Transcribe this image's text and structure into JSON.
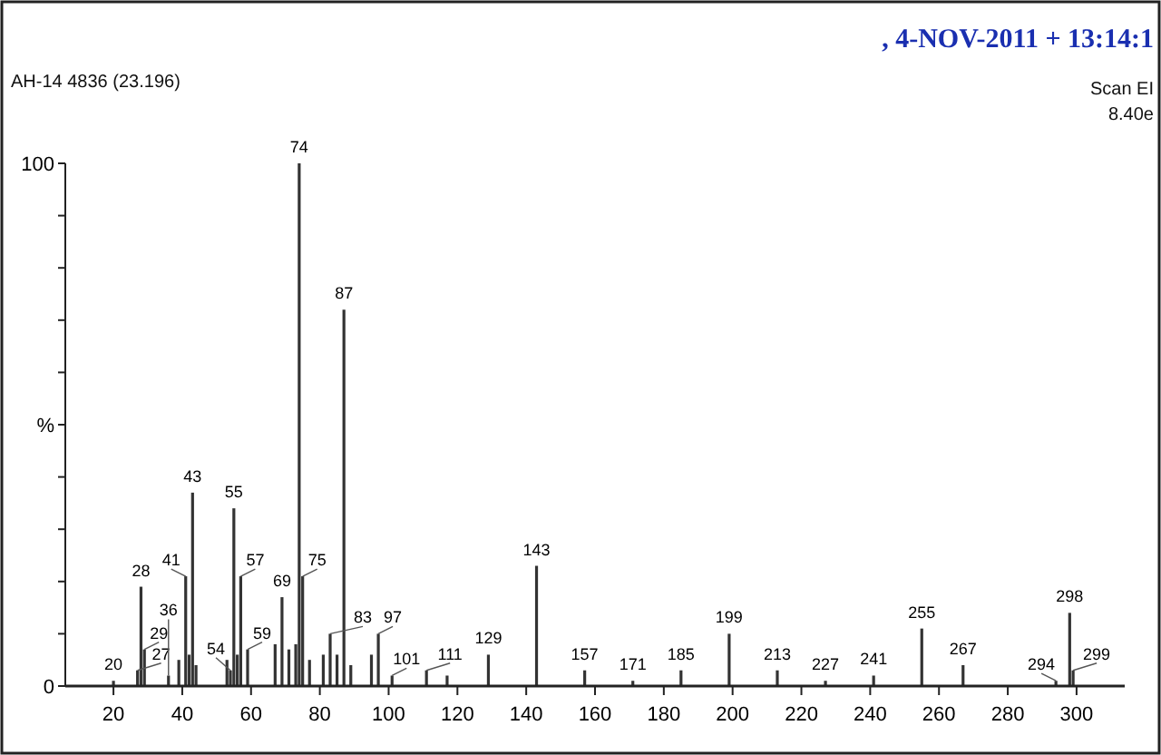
{
  "chart_data": {
    "type": "bar",
    "title": ", 4-NOV-2011 + 13:14:1",
    "subtitle": "AH-14 4836 (23.196)",
    "ylabel": "%",
    "color": "#333333",
    "x": [
      20,
      27,
      28,
      29,
      36,
      39,
      41,
      42,
      43,
      44,
      53,
      54,
      55,
      56,
      57,
      59,
      67,
      69,
      71,
      73,
      74,
      75,
      77,
      81,
      83,
      85,
      87,
      89,
      95,
      97,
      101,
      111,
      117,
      129,
      143,
      157,
      171,
      185,
      199,
      213,
      227,
      241,
      255,
      267,
      294,
      298,
      299
    ],
    "values": [
      1,
      3,
      19,
      7,
      2,
      5,
      21,
      6,
      37,
      4,
      5,
      3,
      34,
      6,
      21,
      7,
      8,
      17,
      7,
      8,
      100,
      21,
      5,
      6,
      10,
      6,
      72,
      4,
      6,
      10,
      2,
      3,
      2,
      6,
      23,
      3,
      1,
      3,
      10,
      3,
      1,
      2,
      11,
      4,
      1,
      14,
      3
    ],
    "xlim": [
      6,
      314
    ],
    "xticks": [
      20,
      40,
      60,
      80,
      100,
      120,
      140,
      160,
      180,
      200,
      220,
      240,
      260,
      280,
      300
    ],
    "ylim": [
      0,
      100
    ],
    "yticks": [
      0,
      {
        "value": 10,
        "label": null
      },
      {
        "value": 20,
        "label": null
      },
      {
        "value": 30,
        "label": null
      },
      {
        "value": 40,
        "label": null
      },
      {
        "value": 50,
        "label": null
      },
      {
        "value": 60,
        "label": null
      },
      {
        "value": 70,
        "label": null
      },
      {
        "value": 80,
        "label": null
      },
      {
        "value": 90,
        "label": null
      },
      100
    ],
    "annotations": [
      {
        "text": "20",
        "x": 20,
        "y": 1
      },
      {
        "text": "27",
        "x": 27,
        "y": 3
      },
      {
        "text": "28",
        "x": 28,
        "y": 19
      },
      {
        "text": "29",
        "x": 29,
        "y": 7
      },
      {
        "text": "36",
        "x": 36,
        "y": 2
      },
      {
        "text": "41",
        "x": 41,
        "y": 21
      },
      {
        "text": "43",
        "x": 43,
        "y": 37
      },
      {
        "text": "54",
        "x": 54,
        "y": 3
      },
      {
        "text": "55",
        "x": 55,
        "y": 34
      },
      {
        "text": "57",
        "x": 57,
        "y": 21
      },
      {
        "text": "59",
        "x": 59,
        "y": 7
      },
      {
        "text": "69",
        "x": 69,
        "y": 17
      },
      {
        "text": "74",
        "x": 74,
        "y": 100
      },
      {
        "text": "75",
        "x": 75,
        "y": 21
      },
      {
        "text": "83",
        "x": 83,
        "y": 10
      },
      {
        "text": "87",
        "x": 87,
        "y": 72
      },
      {
        "text": "97",
        "x": 97,
        "y": 10
      },
      {
        "text": "101",
        "x": 101,
        "y": 2
      },
      {
        "text": "111",
        "x": 111,
        "y": 3
      },
      {
        "text": "129",
        "x": 129,
        "y": 6
      },
      {
        "text": "143",
        "x": 143,
        "y": 23
      },
      {
        "text": "157",
        "x": 157,
        "y": 3
      },
      {
        "text": "171",
        "x": 171,
        "y": 1
      },
      {
        "text": "185",
        "x": 185,
        "y": 3
      },
      {
        "text": "199",
        "x": 199,
        "y": 10
      },
      {
        "text": "213",
        "x": 213,
        "y": 3
      },
      {
        "text": "227",
        "x": 227,
        "y": 1
      },
      {
        "text": "241",
        "x": 241,
        "y": 2
      },
      {
        "text": "255",
        "x": 255,
        "y": 11
      },
      {
        "text": "267",
        "x": 267,
        "y": 4
      },
      {
        "text": "294",
        "x": 294,
        "y": 1
      },
      {
        "text": "298",
        "x": 298,
        "y": 14
      },
      {
        "text": "299",
        "x": 299,
        "y": 3
      },
      "Scan EI",
      "8.40e"
    ],
    "grid": false
  }
}
